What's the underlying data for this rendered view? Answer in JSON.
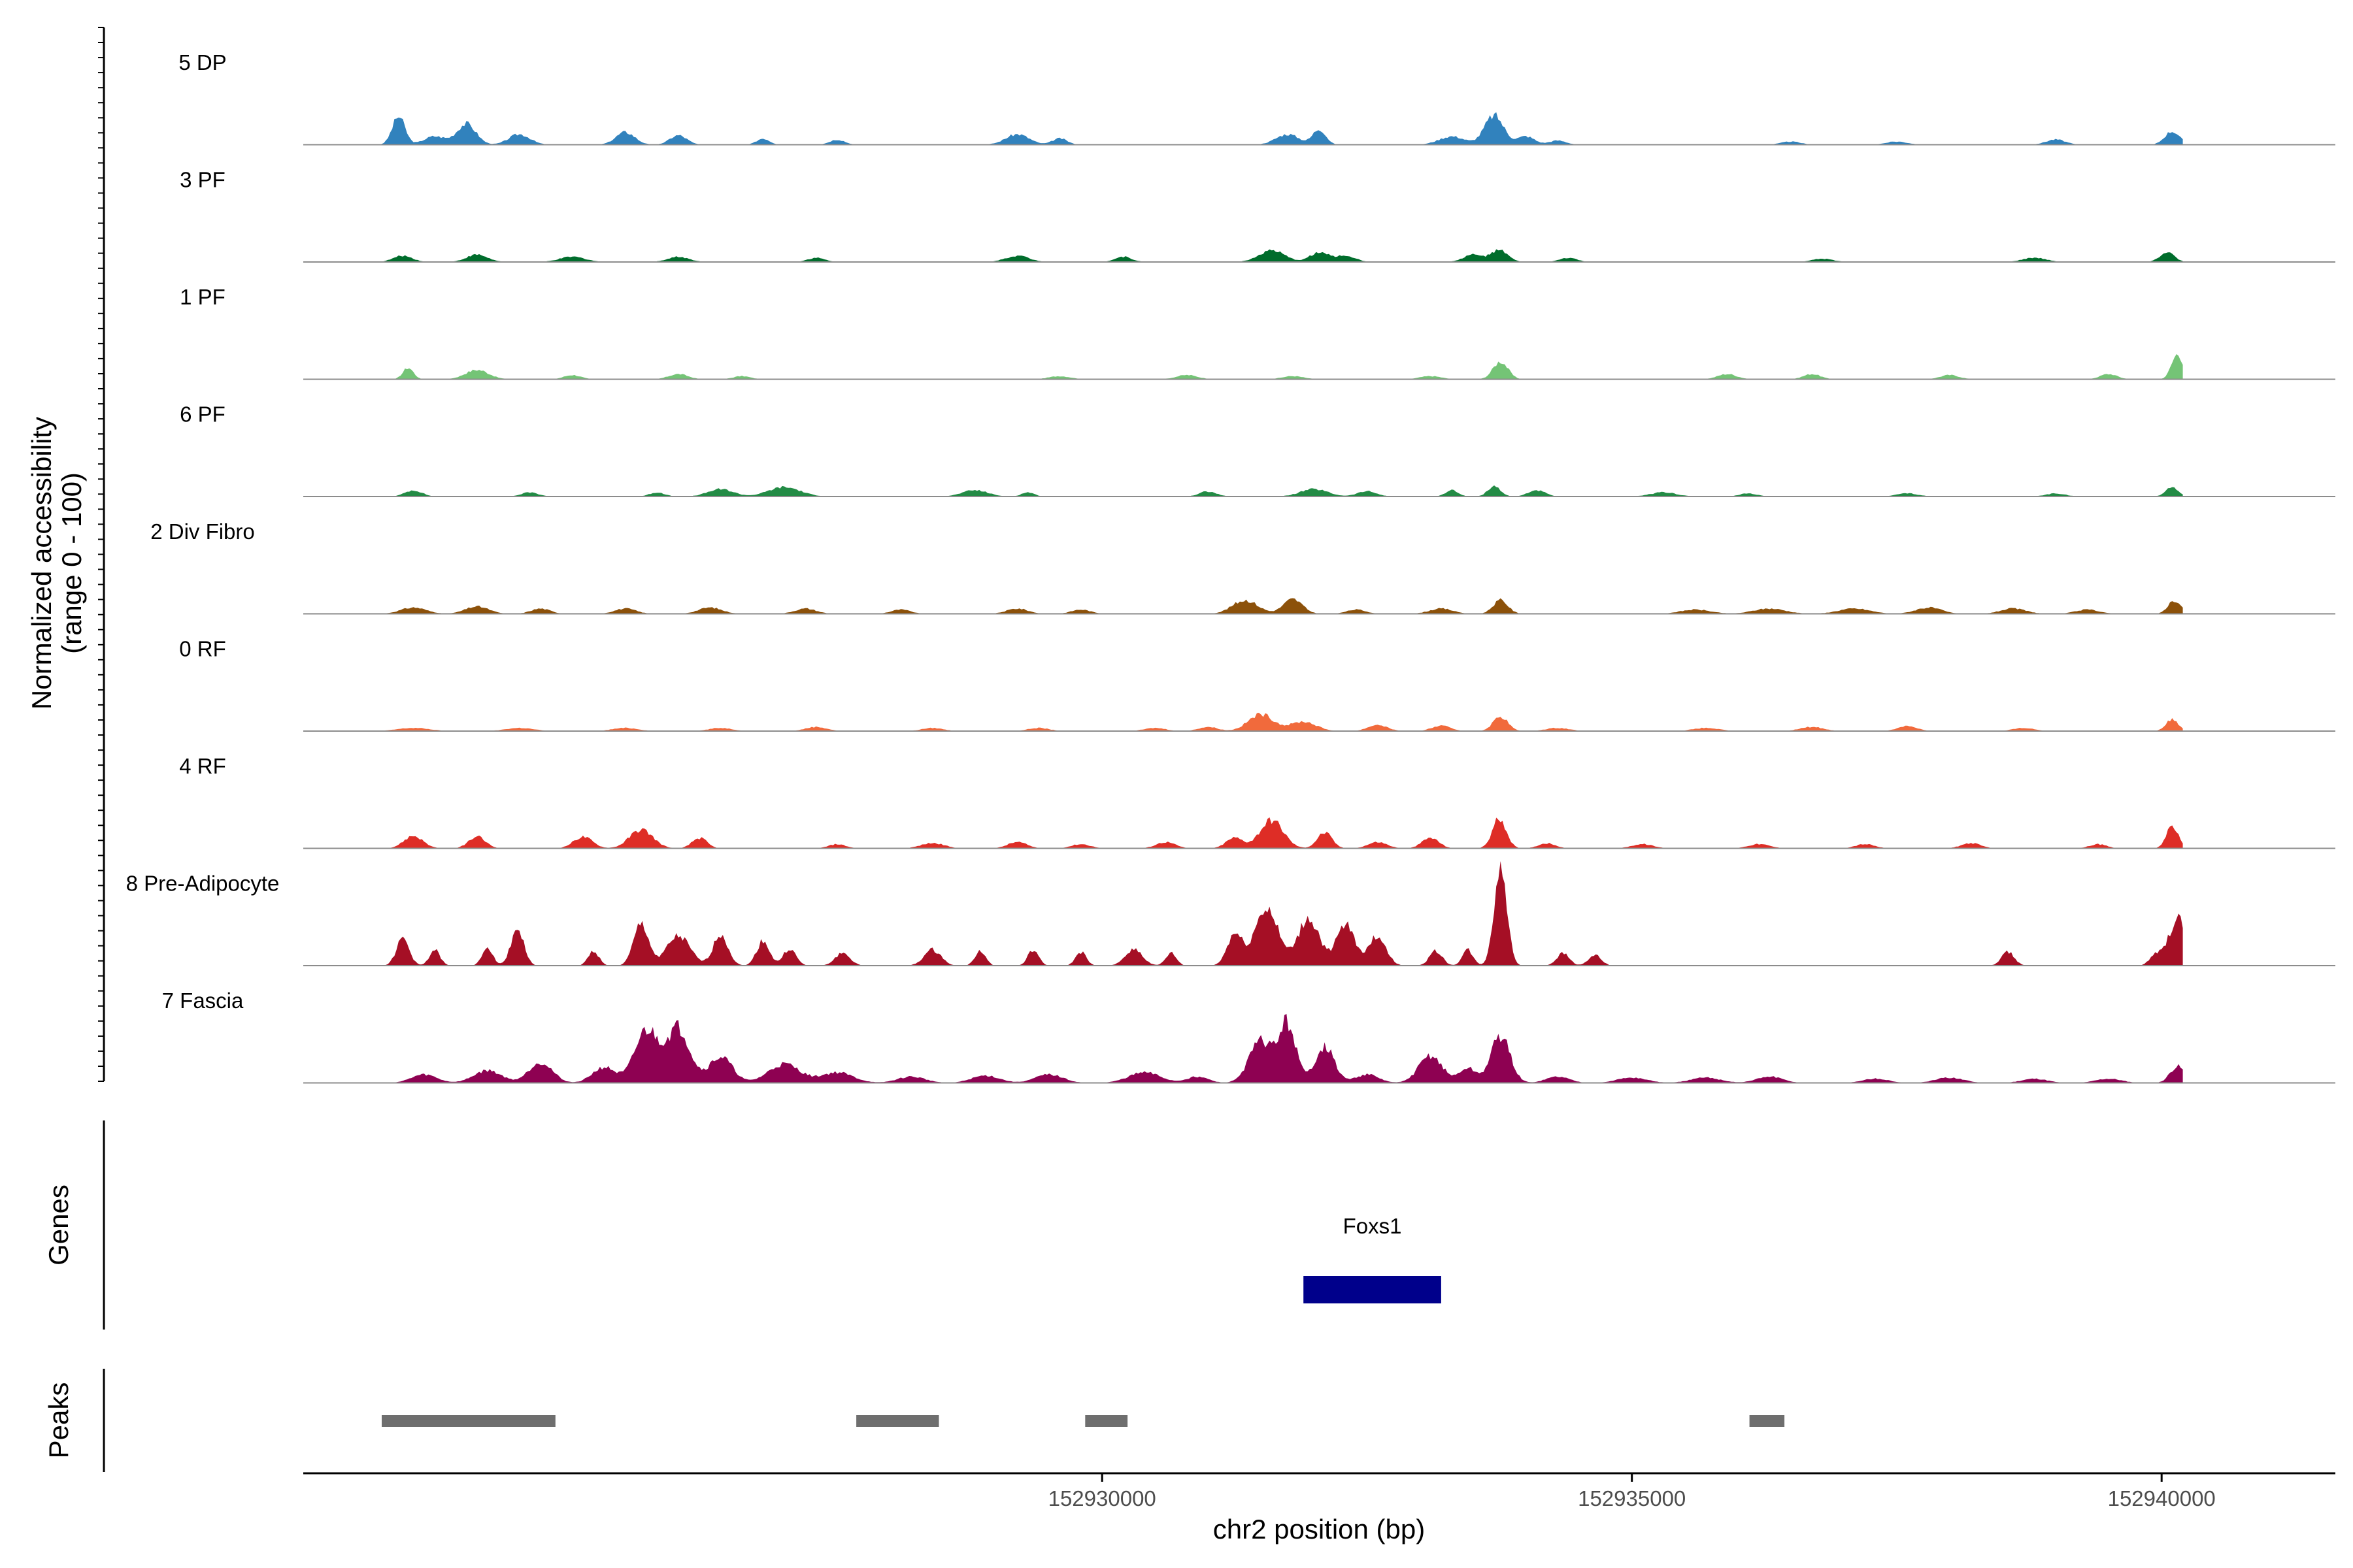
{
  "chart_data": {
    "type": "area",
    "y_axis_title_line1": "Normalized accessibility",
    "y_axis_title_line2": "(range 0 - 100)",
    "xlabel": "chr2 position (bp)",
    "xlim": [
      152922460,
      152941640
    ],
    "xticks": [
      152930000,
      152935000,
      152940000
    ],
    "xtick_labels": [
      "152930000",
      "152935000",
      "152940000"
    ],
    "region_start": 152923120,
    "region_end": 152940200,
    "ylim": [
      0,
      100
    ],
    "series": [
      {
        "name": "5 DP",
        "color": "#3182bd",
        "peaks": [
          [
            152923360,
            27,
            60
          ],
          [
            152924000,
            20,
            90
          ],
          [
            152923700,
            8,
            100
          ],
          [
            152924500,
            10,
            100
          ],
          [
            152925500,
            12,
            90
          ],
          [
            152926000,
            9,
            80
          ],
          [
            152926800,
            6,
            60
          ],
          [
            152927500,
            5,
            70
          ],
          [
            152929200,
            10,
            110
          ],
          [
            152929600,
            6,
            70
          ],
          [
            152931750,
            10,
            110
          ],
          [
            152932050,
            15,
            60
          ],
          [
            152933300,
            8,
            120
          ],
          [
            152933700,
            28,
            90
          ],
          [
            152934000,
            8,
            80
          ],
          [
            152934300,
            4,
            80
          ],
          [
            152936500,
            3,
            90
          ],
          [
            152937500,
            3,
            100
          ],
          [
            152939000,
            5,
            90
          ],
          [
            152940100,
            13,
            70
          ]
        ]
      },
      {
        "name": "3 PF",
        "color": "#006d2c",
        "peaks": [
          [
            152923400,
            6,
            90
          ],
          [
            152924100,
            7,
            100
          ],
          [
            152925000,
            5,
            120
          ],
          [
            152926000,
            5,
            100
          ],
          [
            152927300,
            4,
            80
          ],
          [
            152929200,
            6,
            110
          ],
          [
            152930200,
            5,
            80
          ],
          [
            152931600,
            11,
            120
          ],
          [
            152932050,
            9,
            90
          ],
          [
            152932300,
            6,
            90
          ],
          [
            152933500,
            7,
            90
          ],
          [
            152933750,
            11,
            80
          ],
          [
            152934400,
            4,
            80
          ],
          [
            152936800,
            3,
            100
          ],
          [
            152938800,
            4,
            110
          ],
          [
            152940050,
            9,
            70
          ]
        ]
      },
      {
        "name": "1 PF",
        "color": "#74c476",
        "peaks": [
          [
            152923450,
            11,
            50
          ],
          [
            152924100,
            9,
            110
          ],
          [
            152925000,
            4,
            80
          ],
          [
            152926000,
            5,
            90
          ],
          [
            152926600,
            3,
            80
          ],
          [
            152929600,
            3,
            100
          ],
          [
            152930800,
            4,
            100
          ],
          [
            152931800,
            3,
            100
          ],
          [
            152933100,
            3,
            100
          ],
          [
            152933760,
            17,
            70
          ],
          [
            152935900,
            5,
            90
          ],
          [
            152936700,
            5,
            80
          ],
          [
            152938000,
            4,
            90
          ],
          [
            152939500,
            5,
            80
          ],
          [
            152940150,
            24,
            55
          ]
        ]
      },
      {
        "name": "6 PF",
        "color": "#238b45",
        "peaks": [
          [
            152923500,
            6,
            80
          ],
          [
            152924600,
            4,
            80
          ],
          [
            152925800,
            4,
            70
          ],
          [
            152926400,
            7,
            120
          ],
          [
            152927000,
            9,
            150
          ],
          [
            152928800,
            6,
            120
          ],
          [
            152929300,
            4,
            60
          ],
          [
            152931000,
            5,
            80
          ],
          [
            152932000,
            7,
            130
          ],
          [
            152932500,
            5,
            90
          ],
          [
            152933300,
            6,
            60
          ],
          [
            152933700,
            10,
            60
          ],
          [
            152934100,
            6,
            80
          ],
          [
            152935300,
            4,
            120
          ],
          [
            152936100,
            3,
            80
          ],
          [
            152937600,
            3,
            100
          ],
          [
            152939000,
            3,
            90
          ],
          [
            152940100,
            9,
            60
          ]
        ]
      },
      {
        "name": "2 Div Fibro",
        "color": "#8c510a",
        "peaks": [
          [
            152923500,
            6,
            120
          ],
          [
            152924100,
            7,
            110
          ],
          [
            152924700,
            5,
            90
          ],
          [
            152925500,
            5,
            100
          ],
          [
            152926300,
            6,
            110
          ],
          [
            152927200,
            5,
            100
          ],
          [
            152928100,
            4,
            90
          ],
          [
            152929200,
            5,
            100
          ],
          [
            152929800,
            4,
            90
          ],
          [
            152931350,
            13,
            120
          ],
          [
            152931800,
            14,
            90
          ],
          [
            152932400,
            4,
            90
          ],
          [
            152933200,
            5,
            110
          ],
          [
            152933760,
            13,
            70
          ],
          [
            152935600,
            4,
            140
          ],
          [
            152936300,
            5,
            150
          ],
          [
            152937100,
            5,
            150
          ],
          [
            152937800,
            6,
            120
          ],
          [
            152938600,
            5,
            120
          ],
          [
            152939300,
            4,
            110
          ],
          [
            152940120,
            13,
            60
          ]
        ]
      },
      {
        "name": "0 RF",
        "color": "#f16a3c",
        "peaks": [
          [
            152923500,
            3,
            150
          ],
          [
            152924500,
            3,
            130
          ],
          [
            152925500,
            3,
            120
          ],
          [
            152926400,
            3,
            110
          ],
          [
            152927300,
            4,
            100
          ],
          [
            152928400,
            3,
            100
          ],
          [
            152929400,
            3,
            100
          ],
          [
            152930500,
            3,
            100
          ],
          [
            152931000,
            4,
            90
          ],
          [
            152931500,
            16,
            120
          ],
          [
            152931900,
            9,
            120
          ],
          [
            152932600,
            6,
            90
          ],
          [
            152933200,
            5,
            90
          ],
          [
            152933760,
            14,
            70
          ],
          [
            152934300,
            3,
            110
          ],
          [
            152935700,
            3,
            120
          ],
          [
            152936700,
            4,
            110
          ],
          [
            152937600,
            5,
            90
          ],
          [
            152938700,
            3,
            100
          ],
          [
            152940100,
            11,
            60
          ]
        ]
      },
      {
        "name": "4 RF",
        "color": "#de2d26",
        "peaks": [
          [
            152923500,
            12,
            90
          ],
          [
            152924100,
            11,
            80
          ],
          [
            152925100,
            11,
            90
          ],
          [
            152925650,
            18,
            110
          ],
          [
            152926200,
            10,
            70
          ],
          [
            152927500,
            4,
            80
          ],
          [
            152928400,
            5,
            110
          ],
          [
            152929200,
            6,
            90
          ],
          [
            152929800,
            4,
            90
          ],
          [
            152930600,
            6,
            90
          ],
          [
            152931250,
            10,
            80
          ],
          [
            152931600,
            27,
            110
          ],
          [
            152932100,
            15,
            70
          ],
          [
            152932600,
            6,
            90
          ],
          [
            152933100,
            10,
            80
          ],
          [
            152933750,
            29,
            65
          ],
          [
            152934200,
            5,
            80
          ],
          [
            152935100,
            4,
            100
          ],
          [
            152936200,
            4,
            100
          ],
          [
            152937200,
            4,
            90
          ],
          [
            152938200,
            5,
            90
          ],
          [
            152939400,
            4,
            80
          ],
          [
            152940100,
            22,
            55
          ]
        ]
      },
      {
        "name": "8 Pre-Adipocyte",
        "color": "#a50f25",
        "peaks": [
          [
            152923400,
            26,
            60
          ],
          [
            152923700,
            15,
            50
          ],
          [
            152924200,
            18,
            50
          ],
          [
            152924480,
            36,
            60
          ],
          [
            152925200,
            14,
            50
          ],
          [
            152925650,
            40,
            70
          ],
          [
            152926000,
            28,
            110
          ],
          [
            152926400,
            30,
            70
          ],
          [
            152926800,
            24,
            60
          ],
          [
            152927050,
            16,
            60
          ],
          [
            152927550,
            12,
            70
          ],
          [
            152928400,
            15,
            80
          ],
          [
            152928850,
            14,
            50
          ],
          [
            152929350,
            15,
            50
          ],
          [
            152929800,
            13,
            50
          ],
          [
            152930300,
            16,
            80
          ],
          [
            152930650,
            12,
            50
          ],
          [
            152931250,
            30,
            70
          ],
          [
            152931550,
            55,
            110
          ],
          [
            152931950,
            45,
            100
          ],
          [
            152932300,
            38,
            90
          ],
          [
            152932600,
            28,
            80
          ],
          [
            152933150,
            14,
            60
          ],
          [
            152933450,
            15,
            50
          ],
          [
            152933760,
            95,
            60
          ],
          [
            152934350,
            12,
            60
          ],
          [
            152934650,
            10,
            60
          ],
          [
            152938550,
            13,
            60
          ],
          [
            152939950,
            10,
            60
          ],
          [
            152940150,
            45,
            80
          ]
        ]
      },
      {
        "name": "7 Fascia",
        "color": "#8e0152",
        "peaks": [
          [
            152923600,
            8,
            120
          ],
          [
            152924200,
            12,
            130
          ],
          [
            152924700,
            20,
            110
          ],
          [
            152925300,
            15,
            110
          ],
          [
            152925700,
            50,
            110
          ],
          [
            152926000,
            52,
            110
          ],
          [
            152926400,
            25,
            110
          ],
          [
            152927000,
            18,
            150
          ],
          [
            152927500,
            10,
            150
          ],
          [
            152928200,
            6,
            130
          ],
          [
            152928900,
            7,
            130
          ],
          [
            152929500,
            8,
            130
          ],
          [
            152930400,
            10,
            150
          ],
          [
            152930900,
            6,
            100
          ],
          [
            152931500,
            40,
            110
          ],
          [
            152931750,
            55,
            80
          ],
          [
            152932100,
            35,
            90
          ],
          [
            152932500,
            8,
            110
          ],
          [
            152933100,
            26,
            110
          ],
          [
            152933450,
            14,
            80
          ],
          [
            152933760,
            45,
            90
          ],
          [
            152934300,
            6,
            110
          ],
          [
            152935000,
            5,
            140
          ],
          [
            152935700,
            5,
            140
          ],
          [
            152936300,
            6,
            120
          ],
          [
            152937300,
            4,
            120
          ],
          [
            152938000,
            5,
            130
          ],
          [
            152938800,
            4,
            120
          ],
          [
            152939500,
            4,
            120
          ],
          [
            152940150,
            16,
            70
          ]
        ]
      }
    ],
    "genes_label": "Genes",
    "genes": [
      {
        "name": "Foxs1",
        "start": 152931900,
        "end": 152933200,
        "color": "#00008b"
      }
    ],
    "peaks_label": "Peaks",
    "peak_regions": [
      [
        152923200,
        152924840
      ],
      [
        152927680,
        152928460
      ],
      [
        152929840,
        152930240
      ],
      [
        152936110,
        152936440
      ]
    ]
  }
}
